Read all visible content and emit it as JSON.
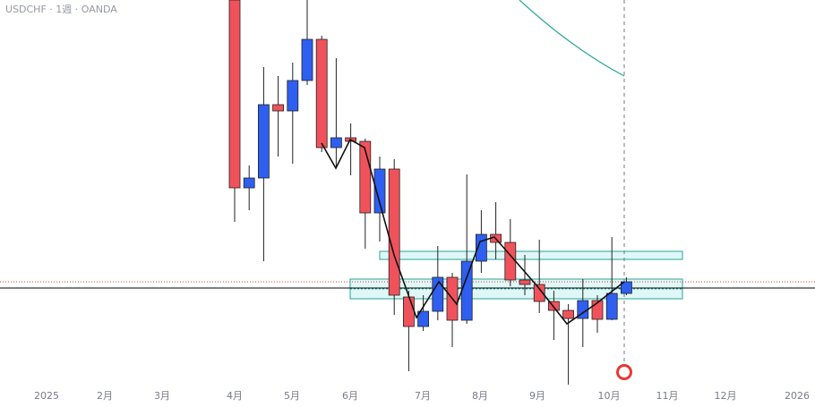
{
  "chart_data": {
    "type": "candlestick",
    "title": "USDCHF · 1週 · OANDA",
    "x_labels": [
      "2025",
      "2月",
      "3月",
      "4月",
      "5月",
      "6月",
      "7月",
      "8月",
      "9月",
      "10月",
      "11月",
      "12月",
      "2026"
    ],
    "open": [
      0.83,
      0.809,
      0.8101,
      0.8183,
      0.8176,
      0.821,
      0.8256,
      0.8135,
      0.8146,
      0.8142,
      0.8062,
      0.8111,
      0.7968,
      0.7935,
      0.7952,
      0.799,
      0.7942,
      0.8008,
      0.8038,
      0.8029,
      0.7987,
      0.7982,
      0.7963,
      0.7953,
      0.7944,
      0.7964,
      0.7943,
      0.7972
    ],
    "high": [
      0.83,
      0.8115,
      0.8225,
      0.8215,
      0.823,
      0.83,
      0.826,
      0.8235,
      0.8162,
      0.8145,
      0.8125,
      0.8122,
      0.7975,
      0.797,
      0.8025,
      0.7995,
      0.8105,
      0.8065,
      0.8074,
      0.8055,
      0.8015,
      0.8032,
      0.7975,
      0.796,
      0.7988,
      0.797,
      0.8035,
      0.799
    ],
    "low": [
      0.8052,
      0.8065,
      0.8008,
      0.8125,
      0.8117,
      0.8205,
      0.813,
      0.8112,
      0.8104,
      0.8022,
      0.803,
      0.7948,
      0.7885,
      0.793,
      0.7942,
      0.7912,
      0.7938,
      0.7995,
      0.801,
      0.798,
      0.797,
      0.795,
      0.792,
      0.787,
      0.7912,
      0.7928,
      0.7942,
      0.797
    ],
    "close": [
      0.809,
      0.8101,
      0.8183,
      0.8176,
      0.821,
      0.8256,
      0.8135,
      0.8146,
      0.8142,
      0.8062,
      0.8111,
      0.797,
      0.7935,
      0.7952,
      0.799,
      0.7942,
      0.8008,
      0.8038,
      0.8029,
      0.7987,
      0.7982,
      0.7963,
      0.7953,
      0.7944,
      0.7964,
      0.7943,
      0.7972,
      0.7985
    ],
    "ylim": [
      0.7845,
      0.83
    ],
    "up_color": "#2e5ff0",
    "down_color": "#f0525c"
  }
}
